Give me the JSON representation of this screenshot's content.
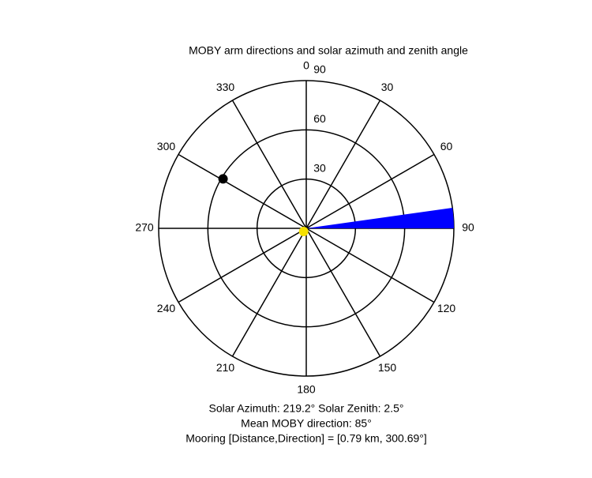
{
  "chart_data": {
    "type": "polar",
    "title": "MOBY arm directions and solar azimuth and zenith angle",
    "rlim": [
      0,
      90
    ],
    "rticks": [
      30,
      60,
      90
    ],
    "thetaticks": [
      0,
      30,
      60,
      90,
      120,
      150,
      180,
      210,
      240,
      270,
      300,
      330
    ],
    "wedge": {
      "theta": [
        82,
        90
      ],
      "r": 90,
      "color": "#0000ff"
    },
    "points": [
      {
        "theta": 300.69,
        "r": 59,
        "color": "#000000"
      },
      {
        "theta": 219.2,
        "r": 2.5,
        "color": "#f5e000"
      }
    ],
    "annotations": [
      "Solar Azimuth: 219.2°   Solar Zenith: 2.5°",
      "Mean MOBY direction: 85°",
      "Mooring [Distance,Direction] = [0.79 km, 300.69°]"
    ]
  }
}
